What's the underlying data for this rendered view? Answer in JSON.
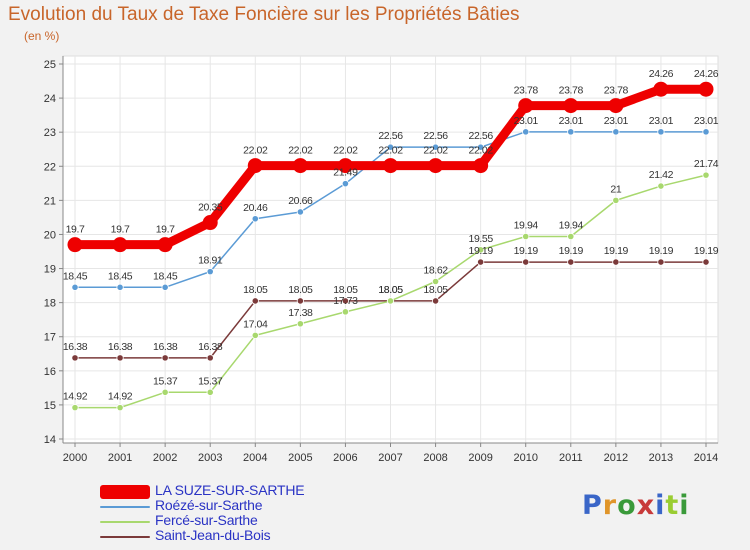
{
  "header": {
    "title": "Evolution du Taux de Taxe Foncière sur les Propriétés Bâties",
    "subtitle": "(en %)"
  },
  "logo": {
    "text": "Proxiti",
    "letter_colors": [
      "#3a66c8",
      "#e0952a",
      "#3a9a3a",
      "#c83a3a",
      "#3a66c8",
      "#9acd32",
      "#3a9a3a"
    ]
  },
  "colors": {
    "plot_background": "#ffffff",
    "grid": "#e6e6e6",
    "axis": "#888888",
    "tick_text": "#333333",
    "value_text": "#333333"
  },
  "chart_data": {
    "type": "line",
    "title": "Evolution du Taux de Taxe Foncière sur les Propriétés Bâties",
    "ylabel": "(en %)",
    "xlabel": "",
    "x": [
      "2000",
      "2001",
      "2002",
      "2003",
      "2004",
      "2005",
      "2006",
      "2007",
      "2008",
      "2009",
      "2010",
      "2011",
      "2012",
      "2013",
      "2014"
    ],
    "ylim": [
      14,
      25
    ],
    "yticks": [
      "14",
      "15",
      "16",
      "17",
      "18",
      "19",
      "20",
      "21",
      "22",
      "23",
      "24",
      "25"
    ],
    "grid": true,
    "legend_position": "bottom-left",
    "series": [
      {
        "name": "LA SUZE-SUR-SARTHE",
        "color": "#ee0000",
        "values": [
          19.7,
          19.7,
          19.7,
          20.35,
          22.02,
          22.02,
          22.02,
          22.02,
          22.02,
          22.02,
          23.78,
          23.78,
          23.78,
          24.26,
          24.26
        ],
        "labels": [
          "19.7",
          "19.7",
          "19.7",
          "20.35",
          "22.02",
          "22.02",
          "22.02",
          "22.02",
          "22.02",
          "22.02",
          "23.78",
          "23.78",
          "23.78",
          "24.26",
          "24.26"
        ]
      },
      {
        "name": "Roézé-sur-Sarthe",
        "color": "#5b9bd5",
        "values": [
          18.45,
          18.45,
          18.45,
          18.91,
          20.46,
          20.66,
          21.49,
          22.56,
          22.56,
          22.56,
          23.01,
          23.01,
          23.01,
          23.01,
          23.01
        ],
        "labels": [
          "18.45",
          "18.45",
          "18.45",
          "18.91",
          "20.46",
          "20.66",
          "21.49",
          "22.56",
          "22.56",
          "22.56",
          "23.01",
          "23.01",
          "23.01",
          "23.01",
          "23.01"
        ]
      },
      {
        "name": "Fercé-sur-Sarthe",
        "color": "#a8d86e",
        "values": [
          14.92,
          14.92,
          15.37,
          15.37,
          17.04,
          17.38,
          17.73,
          18.05,
          18.62,
          19.55,
          19.94,
          19.94,
          21,
          21.42,
          21.74
        ],
        "labels": [
          "14.92",
          "14.92",
          "15.37",
          "15.37",
          "17.04",
          "17.38",
          "17.73",
          "18.05",
          "18.62",
          "19.55",
          "19.94",
          "19.94",
          "21",
          "21.42",
          "21.74"
        ]
      },
      {
        "name": "Saint-Jean-du-Bois",
        "color": "#7b3a3a",
        "values": [
          16.38,
          16.38,
          16.38,
          16.38,
          18.05,
          18.05,
          18.05,
          18.05,
          18.05,
          19.19,
          19.19,
          19.19,
          19.19,
          19.19,
          19.19
        ],
        "labels": [
          "16.38",
          "16.38",
          "16.38",
          "16.38",
          "18.05",
          "18.05",
          "18.05",
          "18.05",
          "18.05",
          "19.19",
          "19.19",
          "19.19",
          "19.19",
          "19.19",
          "19.19"
        ]
      }
    ]
  }
}
